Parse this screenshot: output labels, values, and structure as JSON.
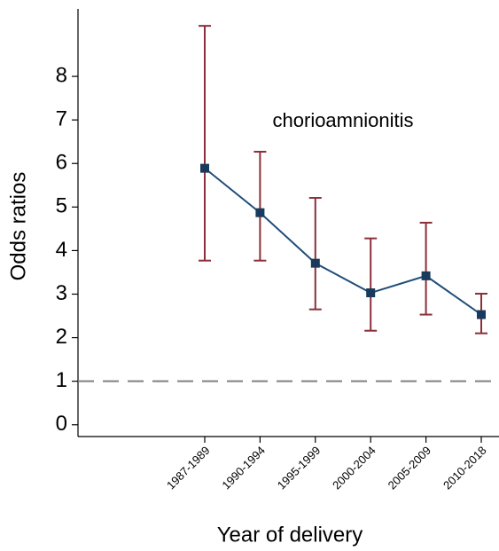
{
  "chart_data": {
    "type": "errorbar-line",
    "annotation": "chorioamnionitis",
    "x_label": "Year of delivery",
    "y_label": "Odds ratios",
    "categories": [
      "1987-1989",
      "1990-1994",
      "1995-1999",
      "2000-2004",
      "2005-2009",
      "2010-2018"
    ],
    "series": [
      {
        "name": "chorioamnionitis",
        "color": "#1f4e79",
        "error_color": "#8b2f3a",
        "values": [
          5.89,
          4.87,
          3.71,
          3.03,
          3.42,
          2.53
        ],
        "lower": [
          3.77,
          3.77,
          2.65,
          2.16,
          2.53,
          2.1
        ],
        "upper": [
          9.16,
          6.27,
          5.21,
          4.28,
          4.64,
          3.01
        ]
      }
    ],
    "reference_line": 1,
    "ylim": [
      -0.27,
      9.55
    ],
    "yticks": [
      0,
      1,
      2,
      3,
      4,
      5,
      6,
      7,
      8
    ]
  }
}
